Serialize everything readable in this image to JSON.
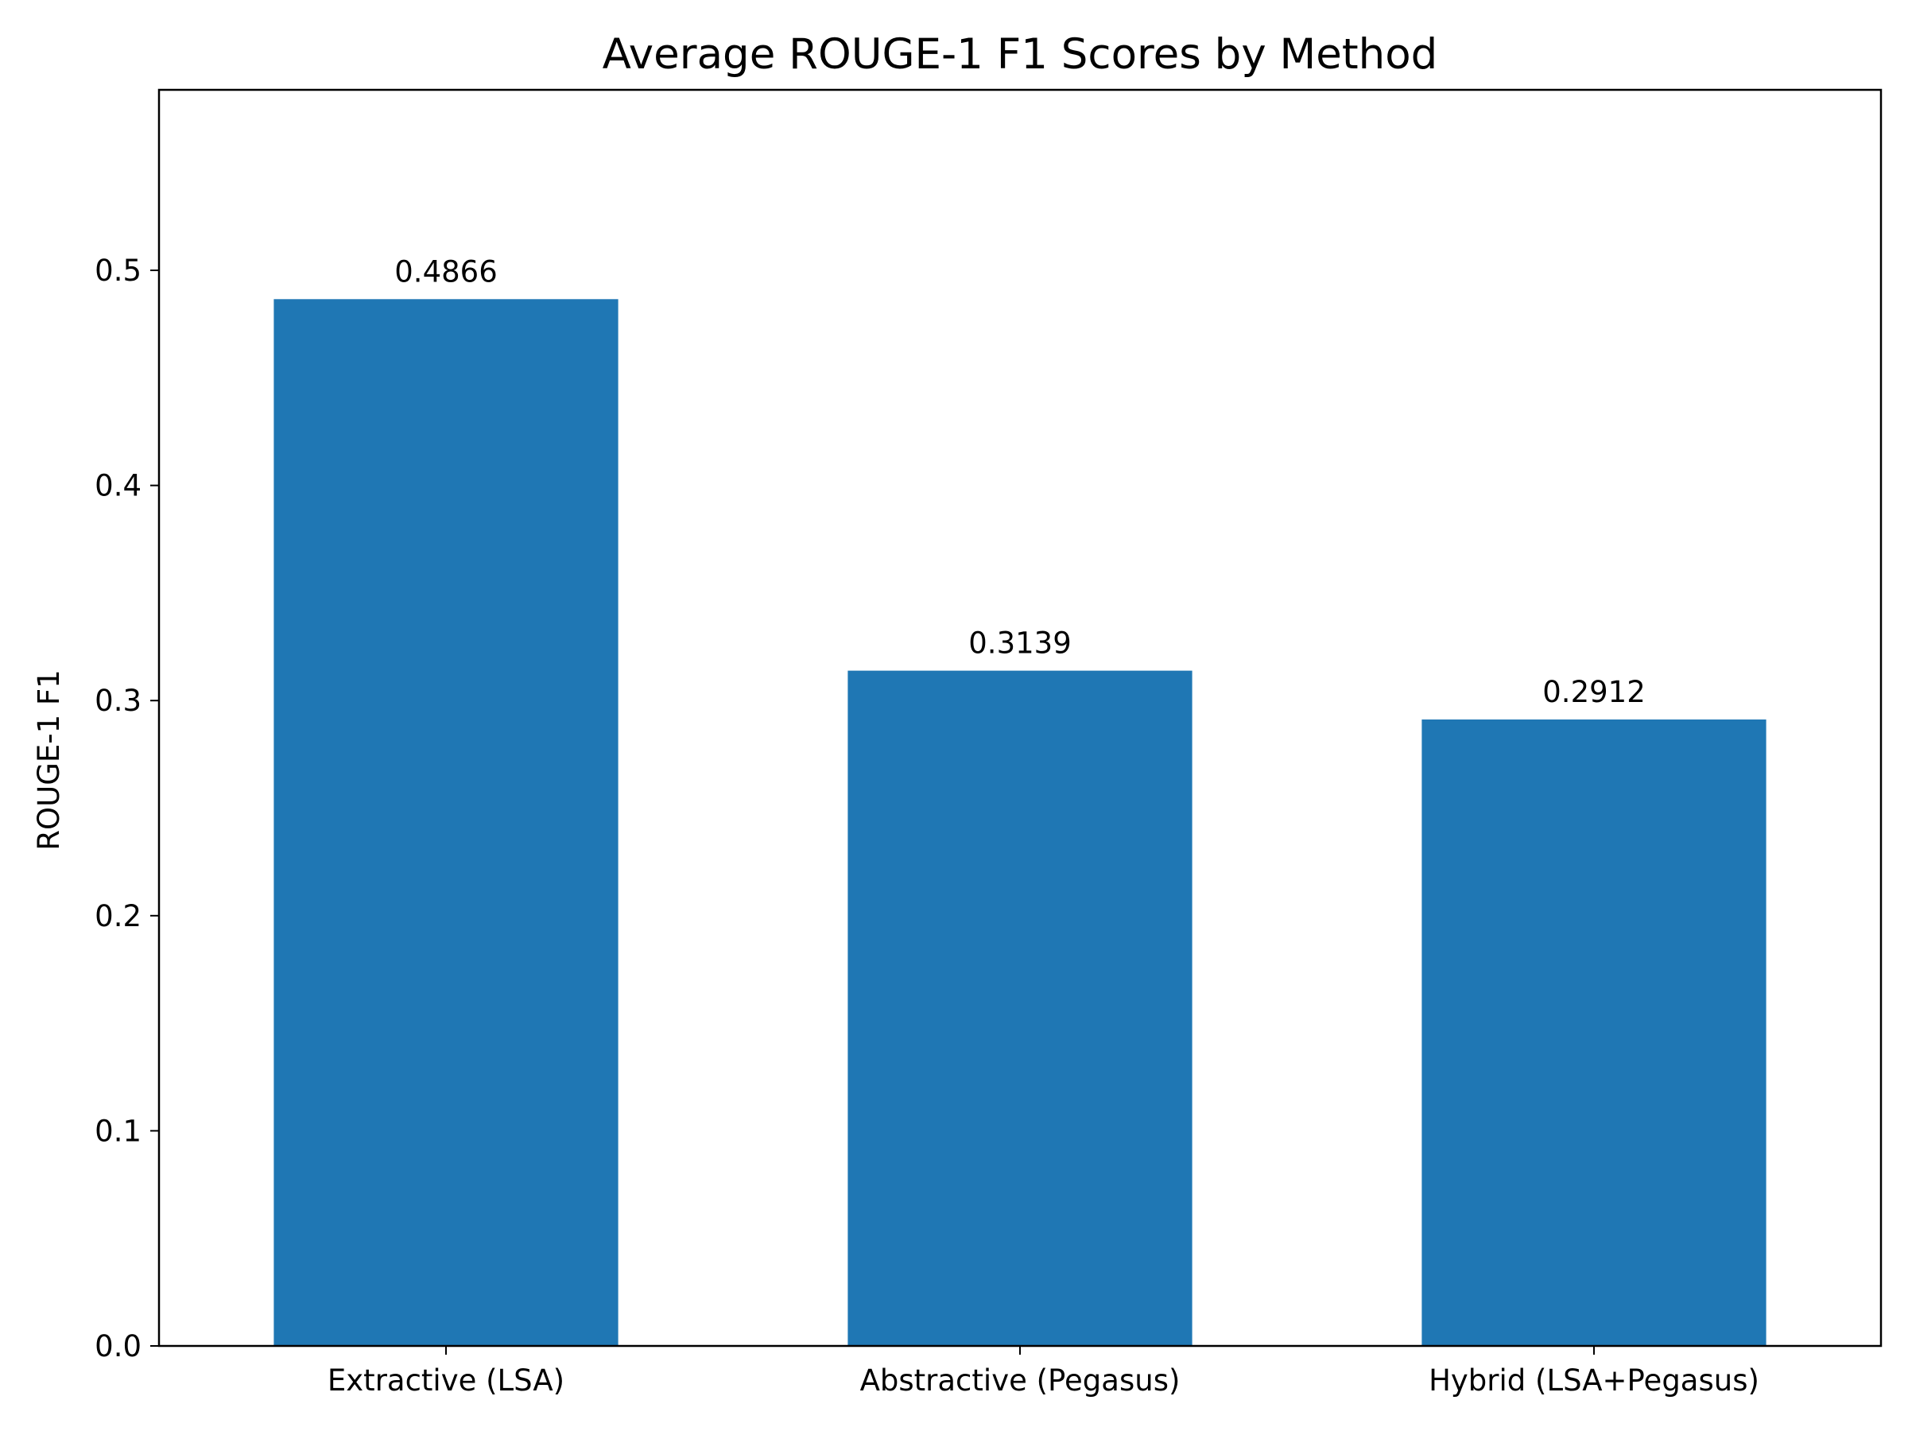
{
  "chart_data": {
    "type": "bar",
    "title": "Average ROUGE-1 F1 Scores by Method",
    "xlabel": "",
    "ylabel": "ROUGE-1 F1",
    "categories": [
      "Extractive (LSA)",
      "Abstractive (Pegasus)",
      "Hybrid (LSA+Pegasus)"
    ],
    "values": [
      0.4866,
      0.3139,
      0.2912
    ],
    "value_labels": [
      "0.4866",
      "0.3139",
      "0.2912"
    ],
    "ylim": [
      0,
      0.5839
    ],
    "yticks": [
      0.0,
      0.1,
      0.2,
      0.3,
      0.4,
      0.5
    ],
    "ytick_labels": [
      "0.0",
      "0.1",
      "0.2",
      "0.3",
      "0.4",
      "0.5"
    ],
    "bar_color": "#1f77b4",
    "grid": false,
    "legend": "none"
  }
}
